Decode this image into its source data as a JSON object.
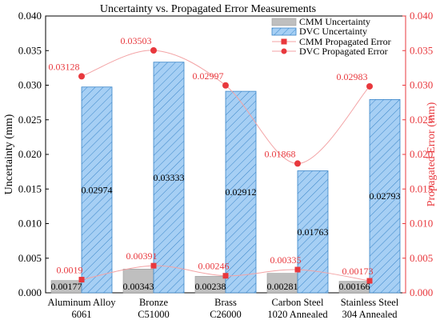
{
  "chart_data": {
    "type": "bar",
    "title": "Uncertainty vs. Propagated Error Measurements",
    "ylabel": "Uncertainty (mm)",
    "y2label": "Propagated Error (mm)",
    "ylim": [
      0,
      0.04
    ],
    "y2lim": [
      0,
      0.04
    ],
    "yticks": [
      "0.000",
      "0.005",
      "0.010",
      "0.015",
      "0.020",
      "0.025",
      "0.030",
      "0.035",
      "0.040"
    ],
    "y2ticks": [
      "0.000",
      "0.005",
      "0.010",
      "0.015",
      "0.020",
      "0.025",
      "0.030",
      "0.035",
      "0.040"
    ],
    "categories": [
      [
        "Aluminum Alloy",
        "6061"
      ],
      [
        "Bronze",
        "C51000"
      ],
      [
        "Brass",
        "C26000"
      ],
      [
        "Carbon Steel",
        "1020 Annealed"
      ],
      [
        "Stainless Steel",
        "304 Annealed"
      ]
    ],
    "legend_position": "top-right",
    "series": [
      {
        "name": "CMM Uncertainty",
        "kind": "bar",
        "color": "#bfbfbf",
        "values": [
          0.00177,
          0.00343,
          0.00238,
          0.00281,
          0.00166
        ],
        "labels": [
          "0.00177",
          "0.00343",
          "0.00238",
          "0.00281",
          "0.00166"
        ]
      },
      {
        "name": "DVC Uncertainty",
        "kind": "bar",
        "color": "#a6cff4",
        "hatch": true,
        "values": [
          0.02974,
          0.03333,
          0.02912,
          0.01763,
          0.02793
        ],
        "labels": [
          "0.02974",
          "0.03333",
          "0.02912",
          "0.01763",
          "0.02793"
        ]
      },
      {
        "name": "CMM Propagated Error",
        "kind": "line",
        "marker": "square",
        "color": "#e8383d",
        "values": [
          0.0019,
          0.00391,
          0.00246,
          0.00335,
          0.00173
        ],
        "labels": [
          "0.0019",
          "0.00391",
          "0.00246",
          "0.00335",
          "0.00173"
        ]
      },
      {
        "name": "DVC Propagated Error",
        "kind": "line",
        "marker": "circle",
        "color": "#e8383d",
        "values": [
          0.03128,
          0.03503,
          0.02997,
          0.01868,
          0.02983
        ],
        "labels": [
          "0.03128",
          "0.03503",
          "0.02997",
          "0.01868",
          "0.02983"
        ]
      }
    ]
  }
}
